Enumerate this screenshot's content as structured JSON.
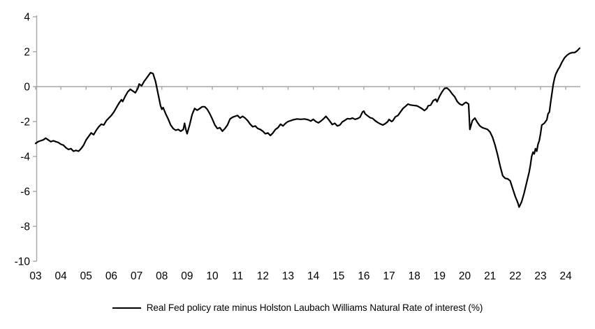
{
  "figure": {
    "background": "#ffffff"
  },
  "chart_data": {
    "type": "line",
    "title": "",
    "xlabel": "",
    "ylabel": "",
    "x_range": [
      2003,
      2024.6
    ],
    "y_range": [
      -10,
      4
    ],
    "y_ticks": [
      4,
      2,
      0,
      -2,
      -4,
      -6,
      -8,
      -10
    ],
    "x_tick_labels": [
      "03",
      "04",
      "05",
      "06",
      "07",
      "08",
      "09",
      "10",
      "11",
      "12",
      "13",
      "14",
      "15",
      "16",
      "17",
      "18",
      "19",
      "20",
      "21",
      "22",
      "23",
      "24"
    ],
    "grid": false,
    "zero_axis_line": true,
    "axis_color": "#a6a6a6",
    "tick_label_color": "#000000",
    "legend_position": "bottom-center",
    "series": [
      {
        "name": "Real Fed policy rate minus Holston Laubach Williams Natural Rate of interest (%)",
        "color": "#000000",
        "line_width": 2.2,
        "points": [
          [
            2003.0,
            -3.25
          ],
          [
            2003.1,
            -3.15
          ],
          [
            2003.2,
            -3.1
          ],
          [
            2003.3,
            -3.05
          ],
          [
            2003.4,
            -2.95
          ],
          [
            2003.5,
            -3.05
          ],
          [
            2003.6,
            -3.15
          ],
          [
            2003.7,
            -3.1
          ],
          [
            2003.8,
            -3.15
          ],
          [
            2003.9,
            -3.2
          ],
          [
            2004.0,
            -3.3
          ],
          [
            2004.1,
            -3.35
          ],
          [
            2004.2,
            -3.5
          ],
          [
            2004.3,
            -3.6
          ],
          [
            2004.4,
            -3.55
          ],
          [
            2004.5,
            -3.7
          ],
          [
            2004.6,
            -3.65
          ],
          [
            2004.7,
            -3.7
          ],
          [
            2004.8,
            -3.55
          ],
          [
            2004.9,
            -3.35
          ],
          [
            2005.0,
            -3.05
          ],
          [
            2005.1,
            -2.85
          ],
          [
            2005.2,
            -2.65
          ],
          [
            2005.3,
            -2.75
          ],
          [
            2005.4,
            -2.5
          ],
          [
            2005.5,
            -2.3
          ],
          [
            2005.6,
            -2.15
          ],
          [
            2005.7,
            -2.2
          ],
          [
            2005.8,
            -1.95
          ],
          [
            2005.9,
            -1.8
          ],
          [
            2006.0,
            -1.65
          ],
          [
            2006.1,
            -1.45
          ],
          [
            2006.2,
            -1.2
          ],
          [
            2006.3,
            -0.95
          ],
          [
            2006.4,
            -0.75
          ],
          [
            2006.45,
            -0.85
          ],
          [
            2006.55,
            -0.55
          ],
          [
            2006.65,
            -0.3
          ],
          [
            2006.75,
            -0.15
          ],
          [
            2006.85,
            -0.25
          ],
          [
            2006.95,
            -0.35
          ],
          [
            2007.05,
            -0.1
          ],
          [
            2007.1,
            0.15
          ],
          [
            2007.2,
            0.05
          ],
          [
            2007.3,
            0.3
          ],
          [
            2007.4,
            0.5
          ],
          [
            2007.5,
            0.7
          ],
          [
            2007.55,
            0.8
          ],
          [
            2007.65,
            0.75
          ],
          [
            2007.75,
            0.3
          ],
          [
            2007.85,
            -0.4
          ],
          [
            2007.95,
            -1.1
          ],
          [
            2008.0,
            -1.3
          ],
          [
            2008.05,
            -1.2
          ],
          [
            2008.15,
            -1.55
          ],
          [
            2008.25,
            -1.85
          ],
          [
            2008.35,
            -2.2
          ],
          [
            2008.45,
            -2.4
          ],
          [
            2008.55,
            -2.5
          ],
          [
            2008.65,
            -2.45
          ],
          [
            2008.75,
            -2.55
          ],
          [
            2008.85,
            -2.45
          ],
          [
            2008.9,
            -2.1
          ],
          [
            2008.95,
            -2.45
          ],
          [
            2009.0,
            -2.7
          ],
          [
            2009.1,
            -2.2
          ],
          [
            2009.2,
            -1.6
          ],
          [
            2009.3,
            -1.25
          ],
          [
            2009.4,
            -1.35
          ],
          [
            2009.5,
            -1.25
          ],
          [
            2009.6,
            -1.15
          ],
          [
            2009.7,
            -1.15
          ],
          [
            2009.8,
            -1.3
          ],
          [
            2009.9,
            -1.55
          ],
          [
            2010.0,
            -1.85
          ],
          [
            2010.1,
            -2.2
          ],
          [
            2010.2,
            -2.4
          ],
          [
            2010.3,
            -2.35
          ],
          [
            2010.4,
            -2.55
          ],
          [
            2010.5,
            -2.4
          ],
          [
            2010.6,
            -2.2
          ],
          [
            2010.7,
            -1.85
          ],
          [
            2010.8,
            -1.75
          ],
          [
            2010.9,
            -1.7
          ],
          [
            2011.0,
            -1.65
          ],
          [
            2011.1,
            -1.8
          ],
          [
            2011.2,
            -1.7
          ],
          [
            2011.3,
            -1.8
          ],
          [
            2011.4,
            -1.95
          ],
          [
            2011.5,
            -2.15
          ],
          [
            2011.6,
            -2.3
          ],
          [
            2011.7,
            -2.25
          ],
          [
            2011.8,
            -2.4
          ],
          [
            2011.9,
            -2.45
          ],
          [
            2012.0,
            -2.55
          ],
          [
            2012.1,
            -2.7
          ],
          [
            2012.2,
            -2.65
          ],
          [
            2012.3,
            -2.8
          ],
          [
            2012.4,
            -2.65
          ],
          [
            2012.5,
            -2.45
          ],
          [
            2012.6,
            -2.35
          ],
          [
            2012.7,
            -2.15
          ],
          [
            2012.8,
            -2.25
          ],
          [
            2012.9,
            -2.1
          ],
          [
            2013.0,
            -2.0
          ],
          [
            2013.1,
            -1.95
          ],
          [
            2013.2,
            -1.9
          ],
          [
            2013.35,
            -1.85
          ],
          [
            2013.5,
            -1.87
          ],
          [
            2013.65,
            -1.85
          ],
          [
            2013.8,
            -1.9
          ],
          [
            2013.9,
            -1.97
          ],
          [
            2014.0,
            -1.87
          ],
          [
            2014.1,
            -2.0
          ],
          [
            2014.2,
            -2.07
          ],
          [
            2014.3,
            -1.97
          ],
          [
            2014.4,
            -1.85
          ],
          [
            2014.5,
            -1.7
          ],
          [
            2014.6,
            -1.87
          ],
          [
            2014.7,
            -2.07
          ],
          [
            2014.75,
            -2.17
          ],
          [
            2014.85,
            -2.1
          ],
          [
            2014.95,
            -2.25
          ],
          [
            2015.05,
            -2.2
          ],
          [
            2015.15,
            -2.02
          ],
          [
            2015.25,
            -1.93
          ],
          [
            2015.35,
            -1.83
          ],
          [
            2015.45,
            -1.85
          ],
          [
            2015.55,
            -1.8
          ],
          [
            2015.65,
            -1.87
          ],
          [
            2015.75,
            -1.83
          ],
          [
            2015.85,
            -1.75
          ],
          [
            2015.95,
            -1.45
          ],
          [
            2016.0,
            -1.4
          ],
          [
            2016.05,
            -1.55
          ],
          [
            2016.15,
            -1.67
          ],
          [
            2016.25,
            -1.78
          ],
          [
            2016.35,
            -1.82
          ],
          [
            2016.45,
            -1.95
          ],
          [
            2016.55,
            -2.05
          ],
          [
            2016.65,
            -2.13
          ],
          [
            2016.75,
            -2.2
          ],
          [
            2016.85,
            -2.12
          ],
          [
            2016.95,
            -2.0
          ],
          [
            2017.0,
            -1.88
          ],
          [
            2017.1,
            -2.0
          ],
          [
            2017.15,
            -1.95
          ],
          [
            2017.25,
            -1.73
          ],
          [
            2017.35,
            -1.65
          ],
          [
            2017.45,
            -1.45
          ],
          [
            2017.55,
            -1.25
          ],
          [
            2017.65,
            -1.13
          ],
          [
            2017.75,
            -1.0
          ],
          [
            2017.85,
            -1.05
          ],
          [
            2017.95,
            -1.07
          ],
          [
            2018.1,
            -1.1
          ],
          [
            2018.2,
            -1.17
          ],
          [
            2018.3,
            -1.26
          ],
          [
            2018.4,
            -1.37
          ],
          [
            2018.5,
            -1.25
          ],
          [
            2018.55,
            -1.1
          ],
          [
            2018.65,
            -1.06
          ],
          [
            2018.75,
            -0.8
          ],
          [
            2018.85,
            -0.72
          ],
          [
            2018.9,
            -0.87
          ],
          [
            2019.0,
            -0.55
          ],
          [
            2019.1,
            -0.3
          ],
          [
            2019.2,
            -0.1
          ],
          [
            2019.3,
            -0.08
          ],
          [
            2019.4,
            -0.22
          ],
          [
            2019.5,
            -0.42
          ],
          [
            2019.6,
            -0.58
          ],
          [
            2019.7,
            -0.85
          ],
          [
            2019.8,
            -1.0
          ],
          [
            2019.9,
            -1.06
          ],
          [
            2020.0,
            -0.94
          ],
          [
            2020.05,
            -0.9
          ],
          [
            2020.15,
            -1.0
          ],
          [
            2020.2,
            -2.45
          ],
          [
            2020.3,
            -1.95
          ],
          [
            2020.4,
            -1.8
          ],
          [
            2020.5,
            -2.05
          ],
          [
            2020.6,
            -2.25
          ],
          [
            2020.7,
            -2.35
          ],
          [
            2020.8,
            -2.4
          ],
          [
            2020.9,
            -2.45
          ],
          [
            2021.0,
            -2.6
          ],
          [
            2021.1,
            -2.9
          ],
          [
            2021.2,
            -3.35
          ],
          [
            2021.3,
            -3.9
          ],
          [
            2021.4,
            -4.55
          ],
          [
            2021.5,
            -5.1
          ],
          [
            2021.6,
            -5.25
          ],
          [
            2021.7,
            -5.28
          ],
          [
            2021.8,
            -5.4
          ],
          [
            2021.9,
            -5.85
          ],
          [
            2022.0,
            -6.3
          ],
          [
            2022.1,
            -6.65
          ],
          [
            2022.15,
            -6.9
          ],
          [
            2022.25,
            -6.6
          ],
          [
            2022.35,
            -6.1
          ],
          [
            2022.45,
            -5.5
          ],
          [
            2022.55,
            -4.9
          ],
          [
            2022.6,
            -4.5
          ],
          [
            2022.65,
            -4.0
          ],
          [
            2022.7,
            -3.75
          ],
          [
            2022.75,
            -3.85
          ],
          [
            2022.8,
            -3.55
          ],
          [
            2022.85,
            -3.7
          ],
          [
            2022.9,
            -3.3
          ],
          [
            2022.95,
            -3.1
          ],
          [
            2023.0,
            -2.7
          ],
          [
            2023.05,
            -2.2
          ],
          [
            2023.15,
            -2.1
          ],
          [
            2023.25,
            -1.9
          ],
          [
            2023.3,
            -1.55
          ],
          [
            2023.35,
            -1.45
          ],
          [
            2023.4,
            -0.9
          ],
          [
            2023.45,
            -0.4
          ],
          [
            2023.5,
            0.1
          ],
          [
            2023.55,
            0.45
          ],
          [
            2023.6,
            0.7
          ],
          [
            2023.7,
            1.0
          ],
          [
            2023.75,
            1.1
          ],
          [
            2023.85,
            1.4
          ],
          [
            2023.95,
            1.65
          ],
          [
            2024.05,
            1.8
          ],
          [
            2024.15,
            1.9
          ],
          [
            2024.25,
            1.95
          ],
          [
            2024.35,
            1.95
          ],
          [
            2024.45,
            2.05
          ],
          [
            2024.55,
            2.2
          ]
        ]
      }
    ]
  }
}
